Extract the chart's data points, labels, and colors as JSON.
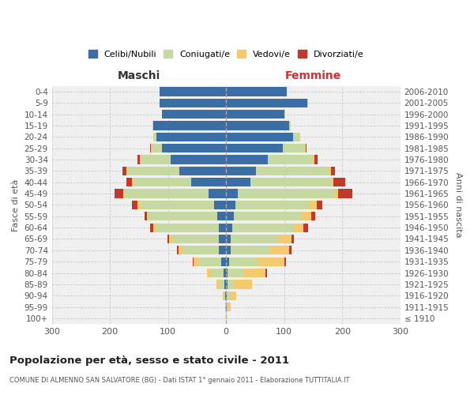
{
  "age_groups": [
    "0-4",
    "5-9",
    "10-14",
    "15-19",
    "20-24",
    "25-29",
    "30-34",
    "35-39",
    "40-44",
    "45-49",
    "50-54",
    "55-59",
    "60-64",
    "65-69",
    "70-74",
    "75-79",
    "80-84",
    "85-89",
    "90-94",
    "95-99",
    "100+"
  ],
  "birth_years": [
    "2006-2010",
    "2001-2005",
    "1996-2000",
    "1991-1995",
    "1986-1990",
    "1981-1985",
    "1976-1980",
    "1971-1975",
    "1966-1970",
    "1961-1965",
    "1956-1960",
    "1951-1955",
    "1946-1950",
    "1941-1945",
    "1936-1940",
    "1931-1935",
    "1926-1930",
    "1921-1925",
    "1916-1920",
    "1911-1915",
    "≤ 1910"
  ],
  "maschi": {
    "celibi": [
      115,
      115,
      110,
      125,
      120,
      110,
      95,
      80,
      60,
      30,
      20,
      15,
      13,
      12,
      12,
      8,
      5,
      3,
      1,
      0,
      0
    ],
    "coniugati": [
      0,
      0,
      1,
      2,
      5,
      18,
      52,
      90,
      100,
      145,
      128,
      118,
      108,
      82,
      62,
      40,
      20,
      8,
      3,
      0,
      0
    ],
    "vedovi": [
      0,
      0,
      0,
      0,
      0,
      1,
      1,
      1,
      2,
      2,
      4,
      3,
      5,
      4,
      8,
      8,
      8,
      5,
      2,
      1,
      0
    ],
    "divorziati": [
      0,
      0,
      0,
      0,
      0,
      2,
      4,
      8,
      10,
      15,
      10,
      5,
      5,
      3,
      2,
      2,
      0,
      0,
      0,
      0,
      0
    ]
  },
  "femmine": {
    "nubili": [
      105,
      140,
      100,
      108,
      115,
      98,
      72,
      52,
      42,
      20,
      16,
      13,
      10,
      8,
      8,
      5,
      3,
      2,
      1,
      1,
      0
    ],
    "coniugate": [
      0,
      1,
      2,
      3,
      12,
      38,
      78,
      125,
      138,
      168,
      128,
      118,
      105,
      82,
      68,
      48,
      25,
      12,
      5,
      2,
      0
    ],
    "vedove": [
      0,
      0,
      0,
      0,
      0,
      1,
      2,
      3,
      5,
      5,
      12,
      15,
      18,
      22,
      32,
      48,
      40,
      30,
      12,
      5,
      1
    ],
    "divorziate": [
      0,
      0,
      0,
      0,
      0,
      2,
      5,
      8,
      20,
      25,
      10,
      8,
      8,
      5,
      5,
      2,
      2,
      0,
      0,
      0,
      0
    ]
  },
  "colors": {
    "celibi_nubili": "#3A6EA5",
    "coniugati": "#C5D9A0",
    "vedovi": "#F5CA6E",
    "divorziati": "#C0392B"
  },
  "xlim": 300,
  "title": "Popolazione per età, sesso e stato civile - 2011",
  "subtitle": "COMUNE DI ALMENNO SAN SALVATORE (BG) - Dati ISTAT 1° gennaio 2011 - Elaborazione TUTTITALIA.IT",
  "ylabel_left": "Fasce di età",
  "ylabel_right": "Anni di nascita",
  "xlabel_maschi": "Maschi",
  "xlabel_femmine": "Femmine",
  "legend_labels": [
    "Celibi/Nubili",
    "Coniugati/e",
    "Vedovi/e",
    "Divorziati/e"
  ],
  "bg_color": "#f0f0f0",
  "grid_color": "#cccccc"
}
